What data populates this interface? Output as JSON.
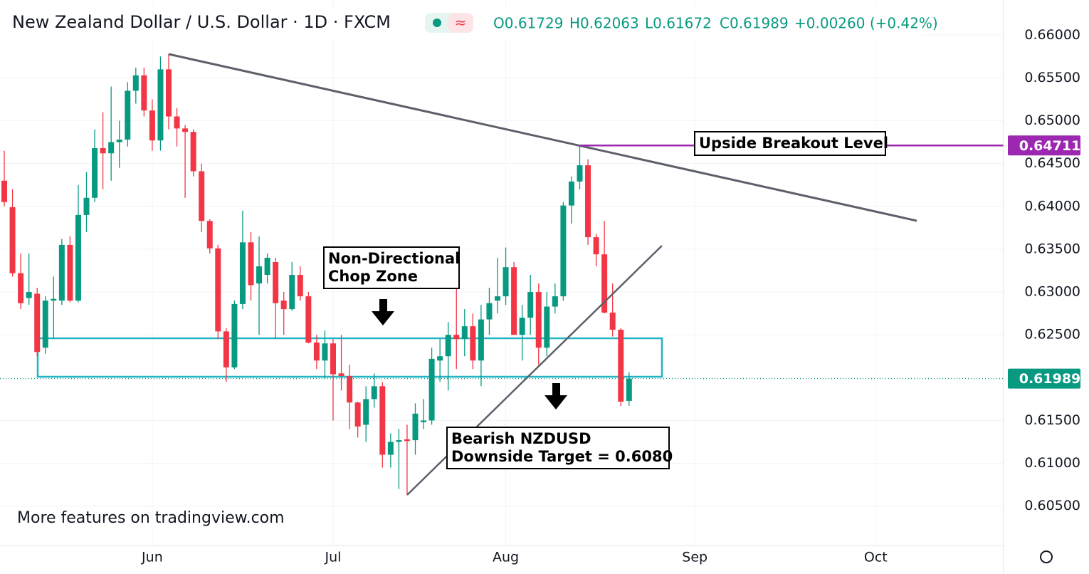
{
  "chart_data": {
    "type": "candlestick",
    "title": "New Zealand Dollar / U.S. Dollar · 1D · FXCM",
    "ohlc_header": [
      "O0.61729",
      "H0.62063",
      "L0.61672",
      "C0.61989",
      "+0.00260 (+0.42%)"
    ],
    "categories": [
      null,
      null,
      null,
      null,
      null,
      null,
      null,
      null,
      null,
      null,
      null,
      null,
      null,
      null,
      null,
      null,
      null,
      null,
      "Jun",
      null,
      null,
      null,
      null,
      null,
      null,
      null,
      null,
      null,
      null,
      null,
      null,
      null,
      null,
      null,
      null,
      null,
      null,
      null,
      null,
      null,
      "Jul",
      null,
      null,
      null,
      null,
      null,
      null,
      null,
      null,
      null,
      null,
      null,
      null,
      null,
      null,
      null,
      null,
      null,
      null,
      null,
      null,
      "Aug",
      null,
      null,
      null,
      null,
      null,
      null,
      null,
      null,
      null,
      null,
      null,
      null,
      null,
      null,
      null,
      null,
      null,
      null,
      null,
      null,
      null,
      null,
      "Sep",
      null,
      null,
      null,
      null,
      null,
      null,
      null,
      null,
      null,
      null,
      null,
      null,
      null,
      null,
      null,
      null,
      null,
      null,
      null,
      null,
      null,
      "Oct",
      null,
      null,
      null
    ],
    "open": [
      0.643,
      0.6399,
      0.6322,
      0.6293,
      0.6298,
      0.6235,
      0.629,
      0.629,
      0.6355,
      0.629,
      0.639,
      0.641,
      0.6468,
      0.6462,
      0.6475,
      0.6478,
      0.6535,
      0.6553,
      0.6512,
      0.6477,
      0.656,
      0.6505,
      0.6491,
      0.6487,
      0.6441,
      0.6383,
      0.6351,
      0.6254,
      0.6212,
      0.6286,
      0.6358,
      0.631,
      0.632,
      0.6335,
      0.629,
      0.628,
      0.632,
      0.6295,
      0.6241,
      0.622,
      0.624,
      0.6205,
      0.6202,
      0.6171,
      0.6145,
      0.6175,
      0.619,
      0.611,
      0.6125,
      0.6128,
      0.6127,
      0.6148,
      0.615,
      0.622,
      0.6225,
      0.625,
      0.6245,
      0.626,
      0.622,
      0.6268,
      0.629,
      0.6295,
      0.6329,
      0.625,
      0.627,
      0.63,
      0.6235,
      0.6283,
      0.6295,
      0.6401,
      0.6429,
      0.6448,
      0.6364,
      0.6344,
      0.6276,
      0.6256,
      0.61729,
      null,
      null,
      null,
      null,
      null,
      null,
      null,
      null,
      null,
      null,
      null,
      null,
      null,
      null,
      null,
      null,
      null,
      null,
      null,
      null,
      null,
      null,
      null,
      null,
      null,
      null,
      null,
      null,
      null,
      null,
      null,
      null,
      null
    ],
    "high": [
      0.6465,
      0.642,
      0.6345,
      0.6345,
      0.6305,
      0.6295,
      0.6318,
      0.6362,
      0.6365,
      0.6425,
      0.644,
      0.649,
      0.651,
      0.654,
      0.65,
      0.6545,
      0.6562,
      0.6562,
      0.6525,
      0.6575,
      0.6578,
      0.6515,
      0.6495,
      0.649,
      0.645,
      0.6385,
      0.6355,
      0.6258,
      0.629,
      0.6395,
      0.637,
      0.6365,
      0.6345,
      0.634,
      0.63,
      0.6335,
      0.633,
      0.63,
      0.625,
      0.6255,
      0.6245,
      0.625,
      0.6215,
      0.6172,
      0.619,
      0.6205,
      0.6195,
      0.6135,
      0.614,
      0.6145,
      0.617,
      0.6175,
      0.6235,
      0.6245,
      0.6265,
      0.6305,
      0.628,
      0.6275,
      0.6285,
      0.6305,
      0.634,
      0.6352,
      0.6335,
      0.6285,
      0.632,
      0.631,
      0.63,
      0.631,
      0.6405,
      0.6435,
      0.6471,
      0.6455,
      0.6368,
      0.6383,
      0.631,
      0.6258,
      0.62063,
      null,
      null,
      null,
      null,
      null,
      null,
      null,
      null,
      null,
      null,
      null,
      null,
      null,
      null,
      null,
      null,
      null,
      null,
      null,
      null,
      null,
      null,
      null,
      null,
      null,
      null,
      null,
      null,
      null,
      null,
      null,
      null,
      null
    ],
    "low": [
      0.64,
      0.6318,
      0.628,
      0.6285,
      0.6225,
      0.6228,
      0.6245,
      0.6285,
      0.6288,
      0.6288,
      0.637,
      0.6405,
      0.642,
      0.643,
      0.6445,
      0.647,
      0.652,
      0.6505,
      0.6465,
      0.6465,
      0.649,
      0.647,
      0.641,
      0.6435,
      0.637,
      0.6345,
      0.6245,
      0.6195,
      0.621,
      0.628,
      0.629,
      0.625,
      0.631,
      0.6245,
      0.625,
      0.6278,
      0.629,
      0.624,
      0.621,
      0.6198,
      0.615,
      0.6185,
      0.614,
      0.613,
      0.6125,
      0.6165,
      0.6095,
      0.6095,
      0.607,
      0.6063,
      0.611,
      0.614,
      0.6145,
      0.6195,
      0.6185,
      0.621,
      0.6225,
      0.621,
      0.619,
      0.625,
      0.6275,
      0.6285,
      0.625,
      0.622,
      0.625,
      0.6215,
      0.6225,
      0.6275,
      0.629,
      0.638,
      0.642,
      0.6355,
      0.633,
      0.6275,
      0.6248,
      0.6167,
      0.61672,
      null,
      null,
      null,
      null,
      null,
      null,
      null,
      null,
      null,
      null,
      null,
      null,
      null,
      null,
      null,
      null,
      null,
      null,
      null,
      null,
      null,
      null,
      null,
      null,
      null,
      null,
      null,
      null,
      null,
      null,
      null,
      null,
      null
    ],
    "close": [
      0.6405,
      0.6322,
      0.6287,
      0.63,
      0.623,
      0.629,
      0.6292,
      0.6355,
      0.629,
      0.639,
      0.641,
      0.6468,
      0.6462,
      0.6475,
      0.6478,
      0.6535,
      0.6553,
      0.6512,
      0.6477,
      0.656,
      0.6505,
      0.6491,
      0.6487,
      0.6441,
      0.6383,
      0.6351,
      0.6254,
      0.6212,
      0.6286,
      0.6358,
      0.6308,
      0.633,
      0.634,
      0.6287,
      0.628,
      0.632,
      0.6295,
      0.6241,
      0.622,
      0.624,
      0.6204,
      0.6202,
      0.6171,
      0.6143,
      0.6175,
      0.619,
      0.611,
      0.6125,
      0.6127,
      0.6126,
      0.6158,
      0.615,
      0.6222,
      0.6225,
      0.625,
      0.6245,
      0.626,
      0.622,
      0.6268,
      0.6287,
      0.6295,
      0.6329,
      0.625,
      0.627,
      0.63,
      0.6235,
      0.6283,
      0.6295,
      0.6401,
      0.6429,
      0.6448,
      0.6364,
      0.6344,
      0.6276,
      0.6256,
      0.6172,
      0.61989,
      null,
      null,
      null,
      null,
      null,
      null,
      null,
      null,
      null,
      null,
      null,
      null,
      null,
      null,
      null,
      null,
      null,
      null,
      null,
      null,
      null,
      null,
      null,
      null,
      null,
      null,
      null,
      null,
      null,
      null,
      null,
      null,
      null
    ],
    "up_color": "#089981",
    "down_color": "#f23645",
    "ylim": [
      0.6004,
      0.6641
    ],
    "yticks": [
      {
        "value": 0.605,
        "label": "0.60500"
      },
      {
        "value": 0.61,
        "label": "0.61000"
      },
      {
        "value": 0.615,
        "label": "0.61500"
      },
      {
        "value": 0.62,
        "label": "0.62000"
      },
      {
        "value": 0.625,
        "label": "0.62500"
      },
      {
        "value": 0.63,
        "label": "0.63000"
      },
      {
        "value": 0.635,
        "label": "0.63500"
      },
      {
        "value": 0.64,
        "label": "0.64000"
      },
      {
        "value": 0.645,
        "label": "0.64500"
      },
      {
        "value": 0.65,
        "label": "0.65000"
      },
      {
        "value": 0.655,
        "label": "0.65500"
      },
      {
        "value": 0.66,
        "label": "0.66000"
      }
    ],
    "grid": true,
    "price_lines": [
      {
        "value": 0.64711,
        "color": "#9c27b0"
      },
      {
        "value": 0.61989,
        "color": "#089981"
      }
    ],
    "annotations": {
      "upside": "Upside Breakout Level",
      "chop_zone": [
        "Non-Directional",
        "Chop Zone"
      ],
      "target": [
        "Bearish NZDUSD",
        "Downside Target = 0.6080"
      ],
      "watermark": "More features on tradingview.com"
    }
  }
}
